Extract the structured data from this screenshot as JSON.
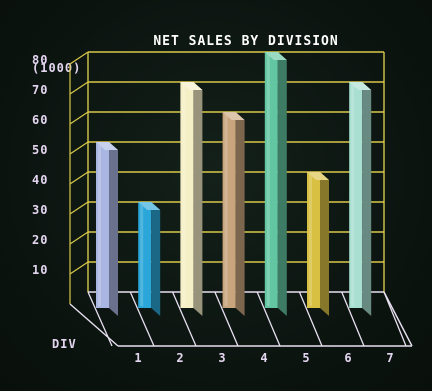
{
  "chart_data": {
    "type": "bar",
    "title": "NET SALES BY DIVISION",
    "ylabel": "(1000)",
    "xlabel": "DIV",
    "categories": [
      "1",
      "2",
      "3",
      "4",
      "5",
      "6",
      "7"
    ],
    "values": [
      50,
      30,
      70,
      60,
      80,
      40,
      70
    ],
    "ylim": [
      0,
      80
    ],
    "yticks": [
      "10",
      "20",
      "30",
      "40",
      "50",
      "60",
      "70",
      "80"
    ],
    "grid": true,
    "colors": {
      "grid": "#d8c84a",
      "axis": "#e8e0f0",
      "bars": [
        "#a9b6e2",
        "#2aa6d8",
        "#f5efc6",
        "#c9a57e",
        "#63c6a3",
        "#d8c043",
        "#a8dfd0"
      ]
    }
  }
}
